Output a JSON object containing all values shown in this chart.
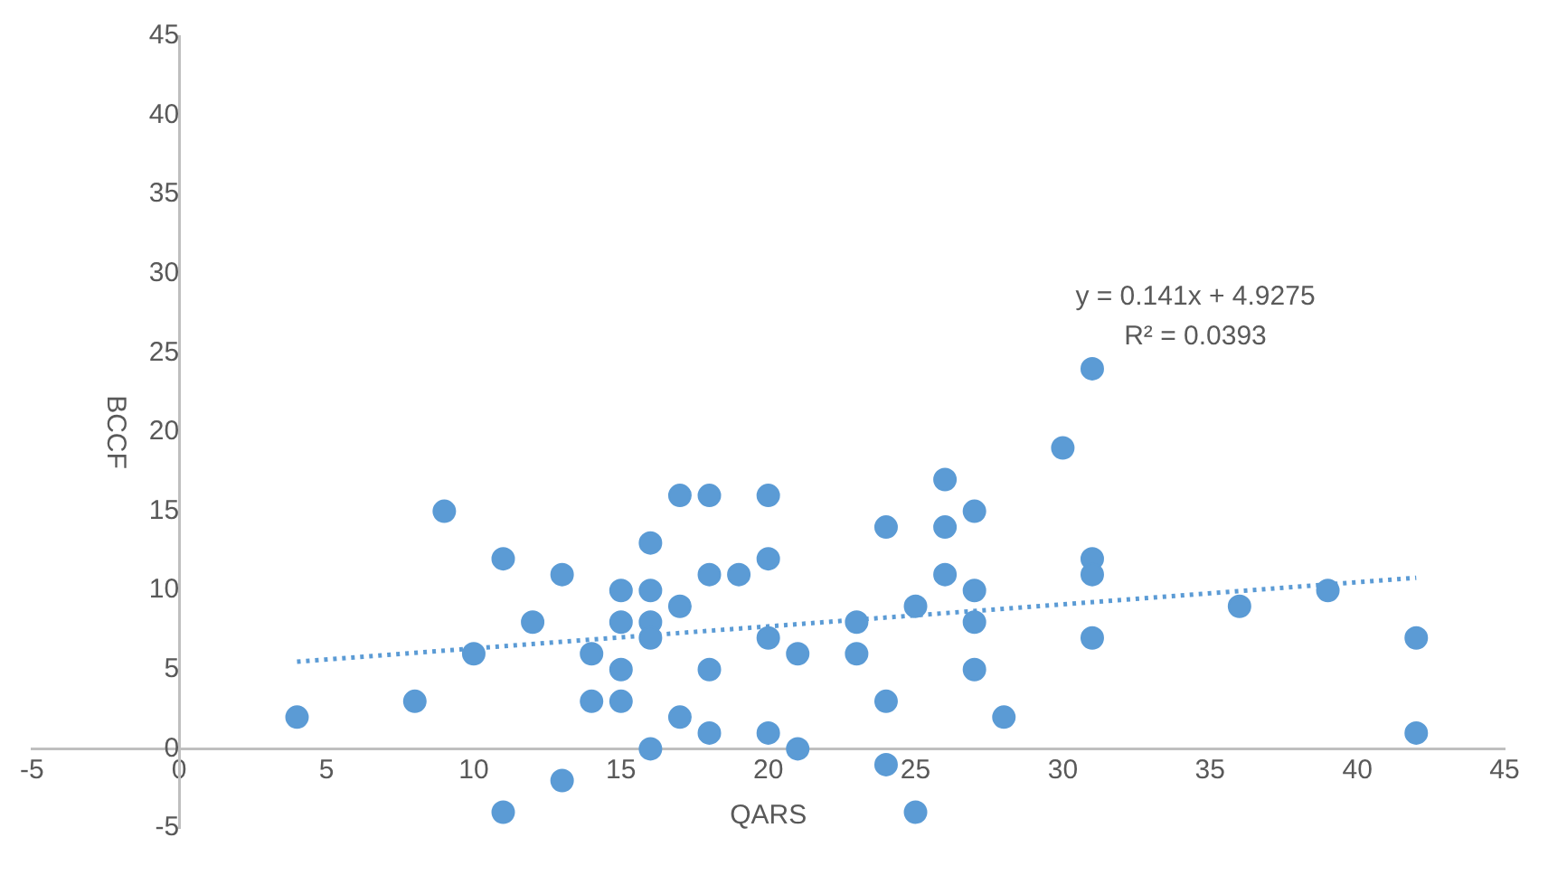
{
  "chart_data": {
    "type": "scatter",
    "xlabel": "QARS",
    "ylabel": "BCCF",
    "xlim": [
      -5,
      45
    ],
    "xticks": [
      -5,
      0,
      5,
      10,
      15,
      20,
      25,
      30,
      35,
      40,
      45
    ],
    "ylim": [
      -5,
      45
    ],
    "yticks": [
      -5,
      0,
      5,
      10,
      15,
      20,
      25,
      30,
      35,
      40,
      45
    ],
    "grid": false,
    "legend": false,
    "annotations": [
      "y = 0.141x + 4.9275",
      "R² = 0.0393"
    ],
    "series": [
      {
        "type": "scatter",
        "marker": "circle",
        "color": "#5b9bd5",
        "x": [
          4,
          8,
          9,
          10,
          11,
          11,
          12,
          13,
          13,
          14,
          14,
          15,
          15,
          15,
          15,
          16,
          16,
          16,
          16,
          16,
          17,
          17,
          17,
          18,
          18,
          18,
          18,
          19,
          20,
          20,
          20,
          20,
          21,
          21,
          23,
          23,
          24,
          24,
          24,
          25,
          25,
          26,
          26,
          26,
          27,
          27,
          27,
          27,
          28,
          30,
          31,
          31,
          31,
          31,
          36,
          39,
          42,
          42
        ],
        "values": [
          2,
          3,
          15,
          6,
          12,
          -4,
          8,
          11,
          -2,
          6,
          3,
          10,
          8,
          5,
          3,
          13,
          10,
          8,
          7,
          0,
          16,
          9,
          2,
          16,
          11,
          5,
          1,
          11,
          16,
          12,
          7,
          1,
          6,
          0,
          8,
          6,
          14,
          3,
          -1,
          9,
          -4,
          17,
          14,
          11,
          15,
          10,
          8,
          5,
          2,
          19,
          24,
          12,
          11,
          7,
          9,
          10,
          7,
          1
        ]
      },
      {
        "type": "line",
        "marker": "none",
        "color": "#5b9bd5",
        "line_style": "dotted",
        "x": [
          4,
          42
        ],
        "values": [
          5.5,
          10.8
        ]
      }
    ]
  }
}
